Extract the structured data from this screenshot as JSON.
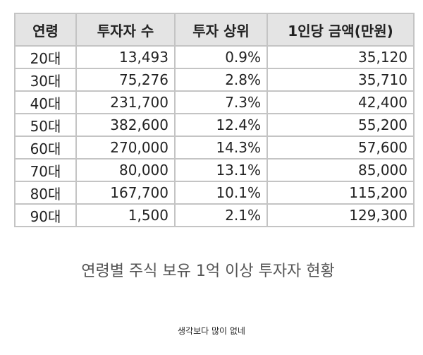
{
  "table": {
    "header": [
      "연령",
      "투자자 수",
      "투자 상위",
      "1인당 금액(만원)"
    ],
    "rows": [
      [
        "20대",
        "13,493",
        "0.9%",
        "35,120"
      ],
      [
        "30대",
        "75,276",
        "2.8%",
        "35,710"
      ],
      [
        "40대",
        "231,700",
        "7.3%",
        "42,400"
      ],
      [
        "50대",
        "382,600",
        "12.4%",
        "55,200"
      ],
      [
        "60대",
        "270,000",
        "14.3%",
        "57,600"
      ],
      [
        "70대",
        "80,000",
        "13.1%",
        "85,000"
      ],
      [
        "80대",
        "167,700",
        "10.1%",
        "115,200"
      ],
      [
        "90대",
        "1,500",
        "2.1%",
        "129,300"
      ]
    ]
  },
  "caption": "연령별 주식 보유 1억 이상 투자자 현황",
  "comment": "생각보다 많이 없네"
}
